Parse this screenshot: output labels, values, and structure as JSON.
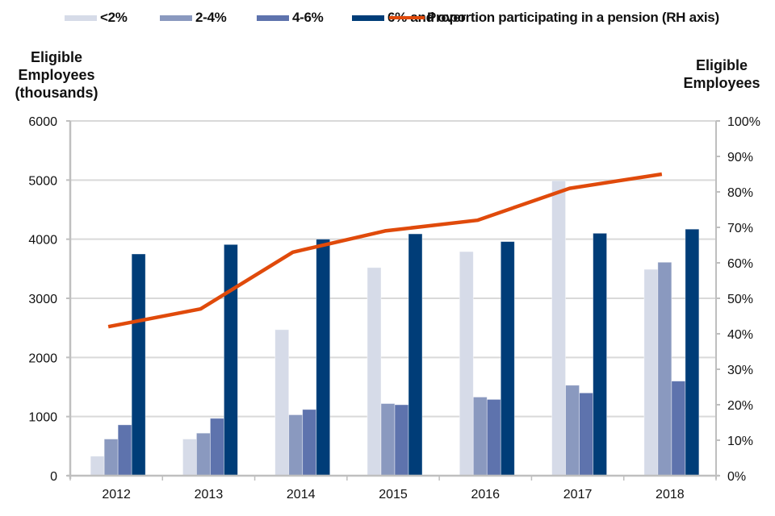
{
  "chart_data": {
    "type": "bar",
    "title": "",
    "categories": [
      "2012",
      "2013",
      "2014",
      "2015",
      "2016",
      "2017",
      "2018"
    ],
    "series": [
      {
        "name": "<2%",
        "type": "bar",
        "axis": "left",
        "color": "#d6dbe8",
        "values": [
          330,
          620,
          2470,
          3520,
          3790,
          4990,
          3490
        ]
      },
      {
        "name": "2-4%",
        "type": "bar",
        "axis": "left",
        "color": "#8a99bf",
        "values": [
          620,
          720,
          1030,
          1220,
          1330,
          1530,
          3610
        ]
      },
      {
        "name": "4-6%",
        "type": "bar",
        "axis": "left",
        "color": "#5e73ad",
        "values": [
          860,
          970,
          1120,
          1200,
          1290,
          1400,
          1600
        ]
      },
      {
        "name": "6% and over",
        "type": "bar",
        "axis": "left",
        "color": "#003d78",
        "values": [
          3750,
          3910,
          4000,
          4090,
          3960,
          4100,
          4170
        ]
      },
      {
        "name": "Proportion participating in a pension (RH axis)",
        "type": "line",
        "axis": "right",
        "color": "#e04a0b",
        "values": [
          42,
          47,
          63,
          69,
          72,
          81,
          85
        ]
      }
    ],
    "left_axis": {
      "title": [
        "Eligible",
        "Employees",
        "(thousands)"
      ],
      "ylim": [
        0,
        6000
      ],
      "ticks": [
        0,
        1000,
        2000,
        3000,
        4000,
        5000,
        6000
      ],
      "tick_labels": [
        "0",
        "1000",
        "2000",
        "3000",
        "4000",
        "5000",
        "6000"
      ]
    },
    "right_axis": {
      "title": [
        "Eligible",
        "Employees"
      ],
      "ylim": [
        0,
        100
      ],
      "unit": "%",
      "ticks": [
        0,
        10,
        20,
        30,
        40,
        50,
        60,
        70,
        80,
        90,
        100
      ],
      "tick_labels": [
        "0%",
        "10%",
        "20%",
        "30%",
        "40%",
        "50%",
        "60%",
        "70%",
        "80%",
        "90%",
        "100%"
      ]
    },
    "xlabel": "",
    "grid": true,
    "legend_position": "top"
  }
}
